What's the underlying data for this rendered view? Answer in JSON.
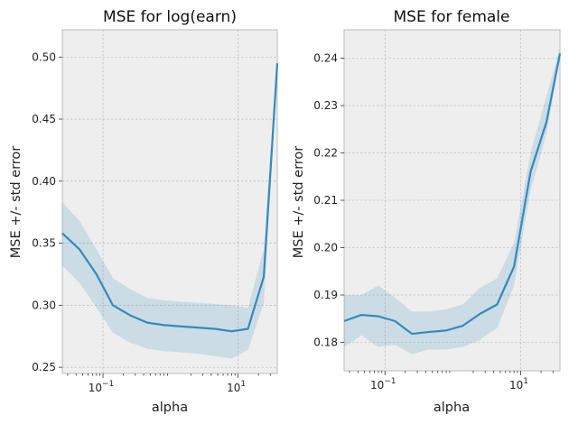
{
  "chart_data": [
    {
      "type": "line",
      "title": "MSE for log(earn)",
      "xlabel": "alpha",
      "ylabel": "MSE +/- std error",
      "xscale": "log",
      "xlim": [
        0.025,
        38
      ],
      "ylim": [
        0.245,
        0.522
      ],
      "xticks": [
        {
          "value": 0.1,
          "base": "10",
          "exp": "−1"
        },
        {
          "value": 10,
          "base": "10",
          "exp": "1"
        }
      ],
      "yticks": [
        {
          "value": 0.25,
          "label": "0.25"
        },
        {
          "value": 0.3,
          "label": "0.30"
        },
        {
          "value": 0.35,
          "label": "0.35"
        },
        {
          "value": 0.4,
          "label": "0.40"
        },
        {
          "value": 0.45,
          "label": "0.45"
        },
        {
          "value": 0.5,
          "label": "0.50"
        }
      ],
      "grid": true,
      "color": "#348abd",
      "x": [
        0.025,
        0.045,
        0.08,
        0.14,
        0.25,
        0.45,
        0.8,
        1.4,
        2.5,
        4.5,
        8,
        14,
        24,
        38
      ],
      "values": [
        0.358,
        0.345,
        0.325,
        0.3,
        0.292,
        0.286,
        0.284,
        0.283,
        0.282,
        0.281,
        0.279,
        0.281,
        0.323,
        0.495
      ],
      "lower": [
        0.332,
        0.318,
        0.298,
        0.278,
        0.27,
        0.265,
        0.263,
        0.262,
        0.261,
        0.259,
        0.257,
        0.264,
        0.302,
        0.49
      ],
      "upper": [
        0.383,
        0.368,
        0.345,
        0.322,
        0.313,
        0.306,
        0.304,
        0.303,
        0.302,
        0.301,
        0.3,
        0.298,
        0.345,
        0.5
      ]
    },
    {
      "type": "line",
      "title": "MSE for female",
      "xlabel": "alpha",
      "ylabel": "MSE +/- std error",
      "xscale": "log",
      "xlim": [
        0.025,
        38
      ],
      "ylim": [
        0.174,
        0.246
      ],
      "xticks": [
        {
          "value": 0.1,
          "base": "10",
          "exp": "−1"
        },
        {
          "value": 10,
          "base": "10",
          "exp": "1"
        }
      ],
      "yticks": [
        {
          "value": 0.18,
          "label": "0.18"
        },
        {
          "value": 0.19,
          "label": "0.19"
        },
        {
          "value": 0.2,
          "label": "0.20"
        },
        {
          "value": 0.21,
          "label": "0.21"
        },
        {
          "value": 0.22,
          "label": "0.22"
        },
        {
          "value": 0.23,
          "label": "0.23"
        },
        {
          "value": 0.24,
          "label": "0.24"
        }
      ],
      "grid": true,
      "color": "#348abd",
      "x": [
        0.025,
        0.045,
        0.08,
        0.14,
        0.25,
        0.45,
        0.8,
        1.4,
        2.5,
        4.5,
        8,
        14,
        24,
        38
      ],
      "values": [
        0.1845,
        0.1858,
        0.1855,
        0.1845,
        0.1818,
        0.1822,
        0.1825,
        0.1835,
        0.186,
        0.188,
        0.196,
        0.216,
        0.2265,
        0.241
      ],
      "lower": [
        0.179,
        0.1815,
        0.179,
        0.1795,
        0.1775,
        0.1785,
        0.1785,
        0.179,
        0.1805,
        0.183,
        0.192,
        0.212,
        0.224,
        0.24
      ],
      "upper": [
        0.19,
        0.19,
        0.192,
        0.1895,
        0.1865,
        0.1865,
        0.187,
        0.188,
        0.1915,
        0.1935,
        0.201,
        0.22,
        0.232,
        0.242
      ]
    }
  ]
}
